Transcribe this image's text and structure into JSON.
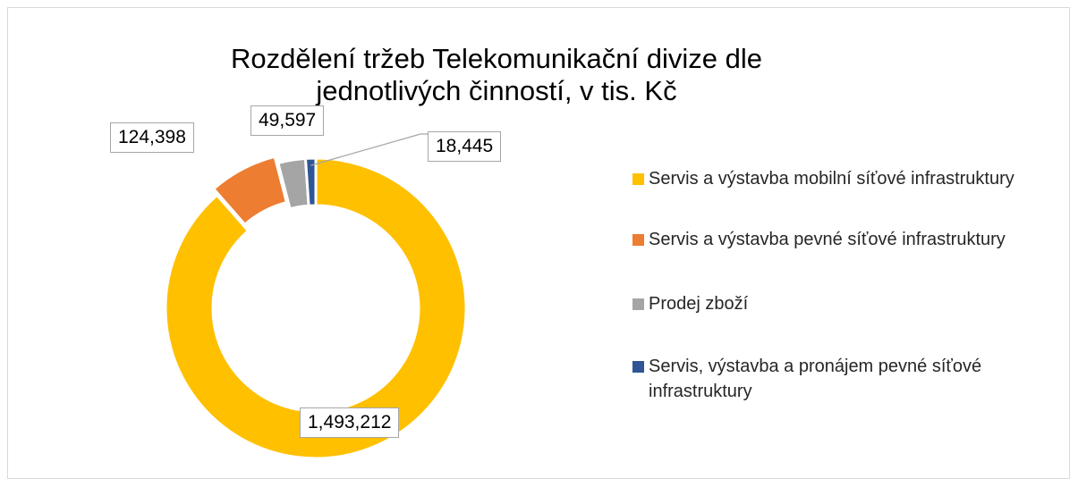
{
  "chart_data": {
    "type": "donut",
    "title": "Rozdělení tržeb Telekomunikační divize dle jednotlivých činností, v tis. Kč",
    "categories": [
      "Servis a výstavba mobilní síťové infrastruktury",
      "Servis a výstavba pevné síťové infrastruktury",
      "Prodej zboží",
      "Servis, výstavba a pronájem pevné síťové infrastruktury"
    ],
    "values": [
      1493212,
      124398,
      49597,
      18445
    ],
    "value_labels": [
      "1,493,212",
      "124,398",
      "49,597",
      "18,445"
    ],
    "colors": [
      "#ffc000",
      "#ed7d31",
      "#a5a5a5",
      "#2f5597"
    ],
    "legend": "right"
  }
}
